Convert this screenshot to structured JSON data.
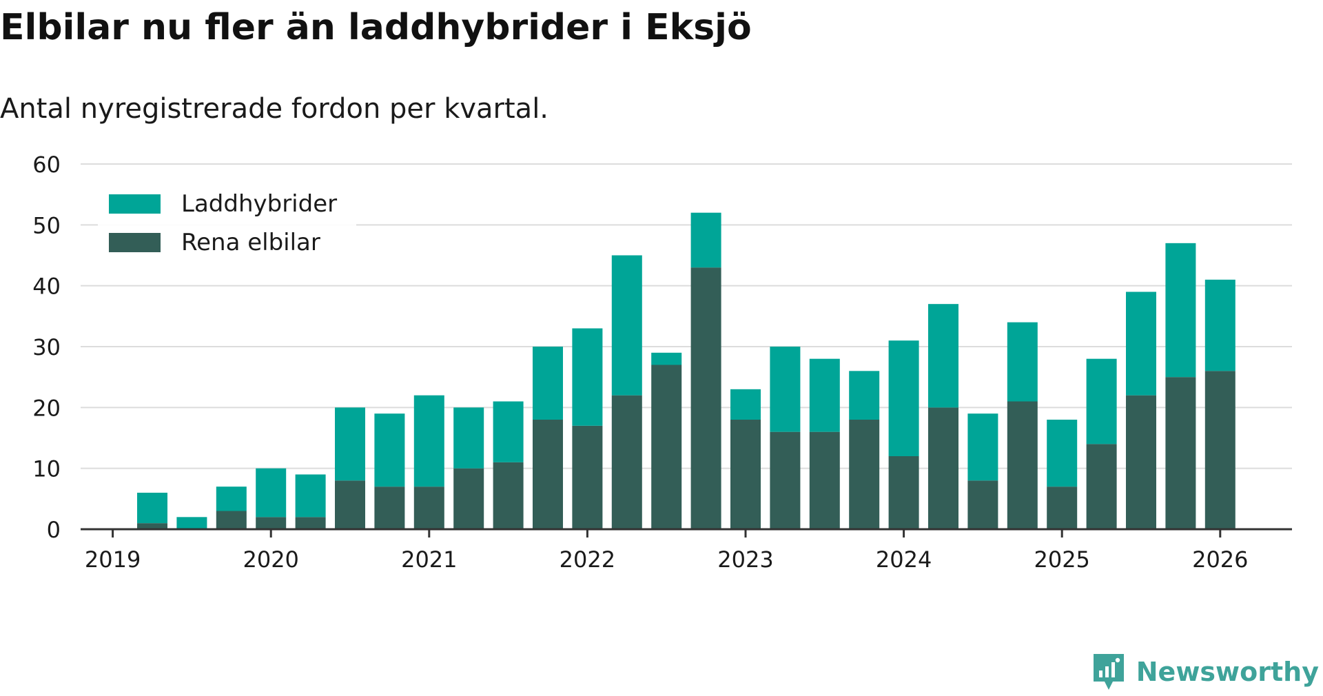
{
  "title": "Elbilar nu fler än laddhybrider i Eksjö",
  "subtitle": "Antal nyregistrerade fordon per kvartal.",
  "brand": "Newsworthy",
  "colors": {
    "laddhybrider": "#00a597",
    "rena_elbilar": "#335e57",
    "grid": "#dcdcdc",
    "axis": "#333333",
    "text": "#1a1a1a",
    "brand": "#3fa39a"
  },
  "chart_data": {
    "type": "bar",
    "stacked": true,
    "title": "Elbilar nu fler än laddhybrider i Eksjö",
    "subtitle": "Antal nyregistrerade fordon per kvartal.",
    "xlabel": "",
    "ylabel": "",
    "ylim": [
      0,
      60
    ],
    "yticks": [
      0,
      10,
      20,
      30,
      40,
      50,
      60
    ],
    "x_tick_labels": [
      "2019",
      "2020",
      "2021",
      "2022",
      "2023",
      "2024",
      "2025",
      "2026"
    ],
    "grid": true,
    "legend_position": "top-left",
    "categories": [
      "2019 Q2",
      "2019 Q3",
      "2019 Q4",
      "2020 Q1",
      "2020 Q2",
      "2020 Q3",
      "2020 Q4",
      "2021 Q1",
      "2021 Q2",
      "2021 Q3",
      "2021 Q4",
      "2022 Q1",
      "2022 Q2",
      "2022 Q3",
      "2022 Q4",
      "2023 Q1",
      "2023 Q2",
      "2023 Q3",
      "2023 Q4",
      "2024 Q1",
      "2024 Q2",
      "2024 Q3",
      "2024 Q4",
      "2025 Q1",
      "2025 Q2",
      "2025 Q3",
      "2025 Q4",
      "2026 Q1"
    ],
    "series": [
      {
        "name": "Rena elbilar",
        "values": [
          1,
          0,
          3,
          2,
          2,
          8,
          7,
          7,
          10,
          11,
          18,
          17,
          22,
          27,
          43,
          18,
          16,
          16,
          18,
          12,
          20,
          8,
          21,
          7,
          14,
          22,
          25,
          26
        ]
      },
      {
        "name": "Laddhybrider",
        "values": [
          5,
          2,
          4,
          8,
          7,
          12,
          12,
          15,
          10,
          10,
          12,
          16,
          23,
          2,
          9,
          5,
          14,
          12,
          8,
          19,
          17,
          11,
          13,
          11,
          14,
          17,
          22,
          15
        ]
      }
    ],
    "legend_order": [
      "Laddhybrider",
      "Rena elbilar"
    ]
  }
}
